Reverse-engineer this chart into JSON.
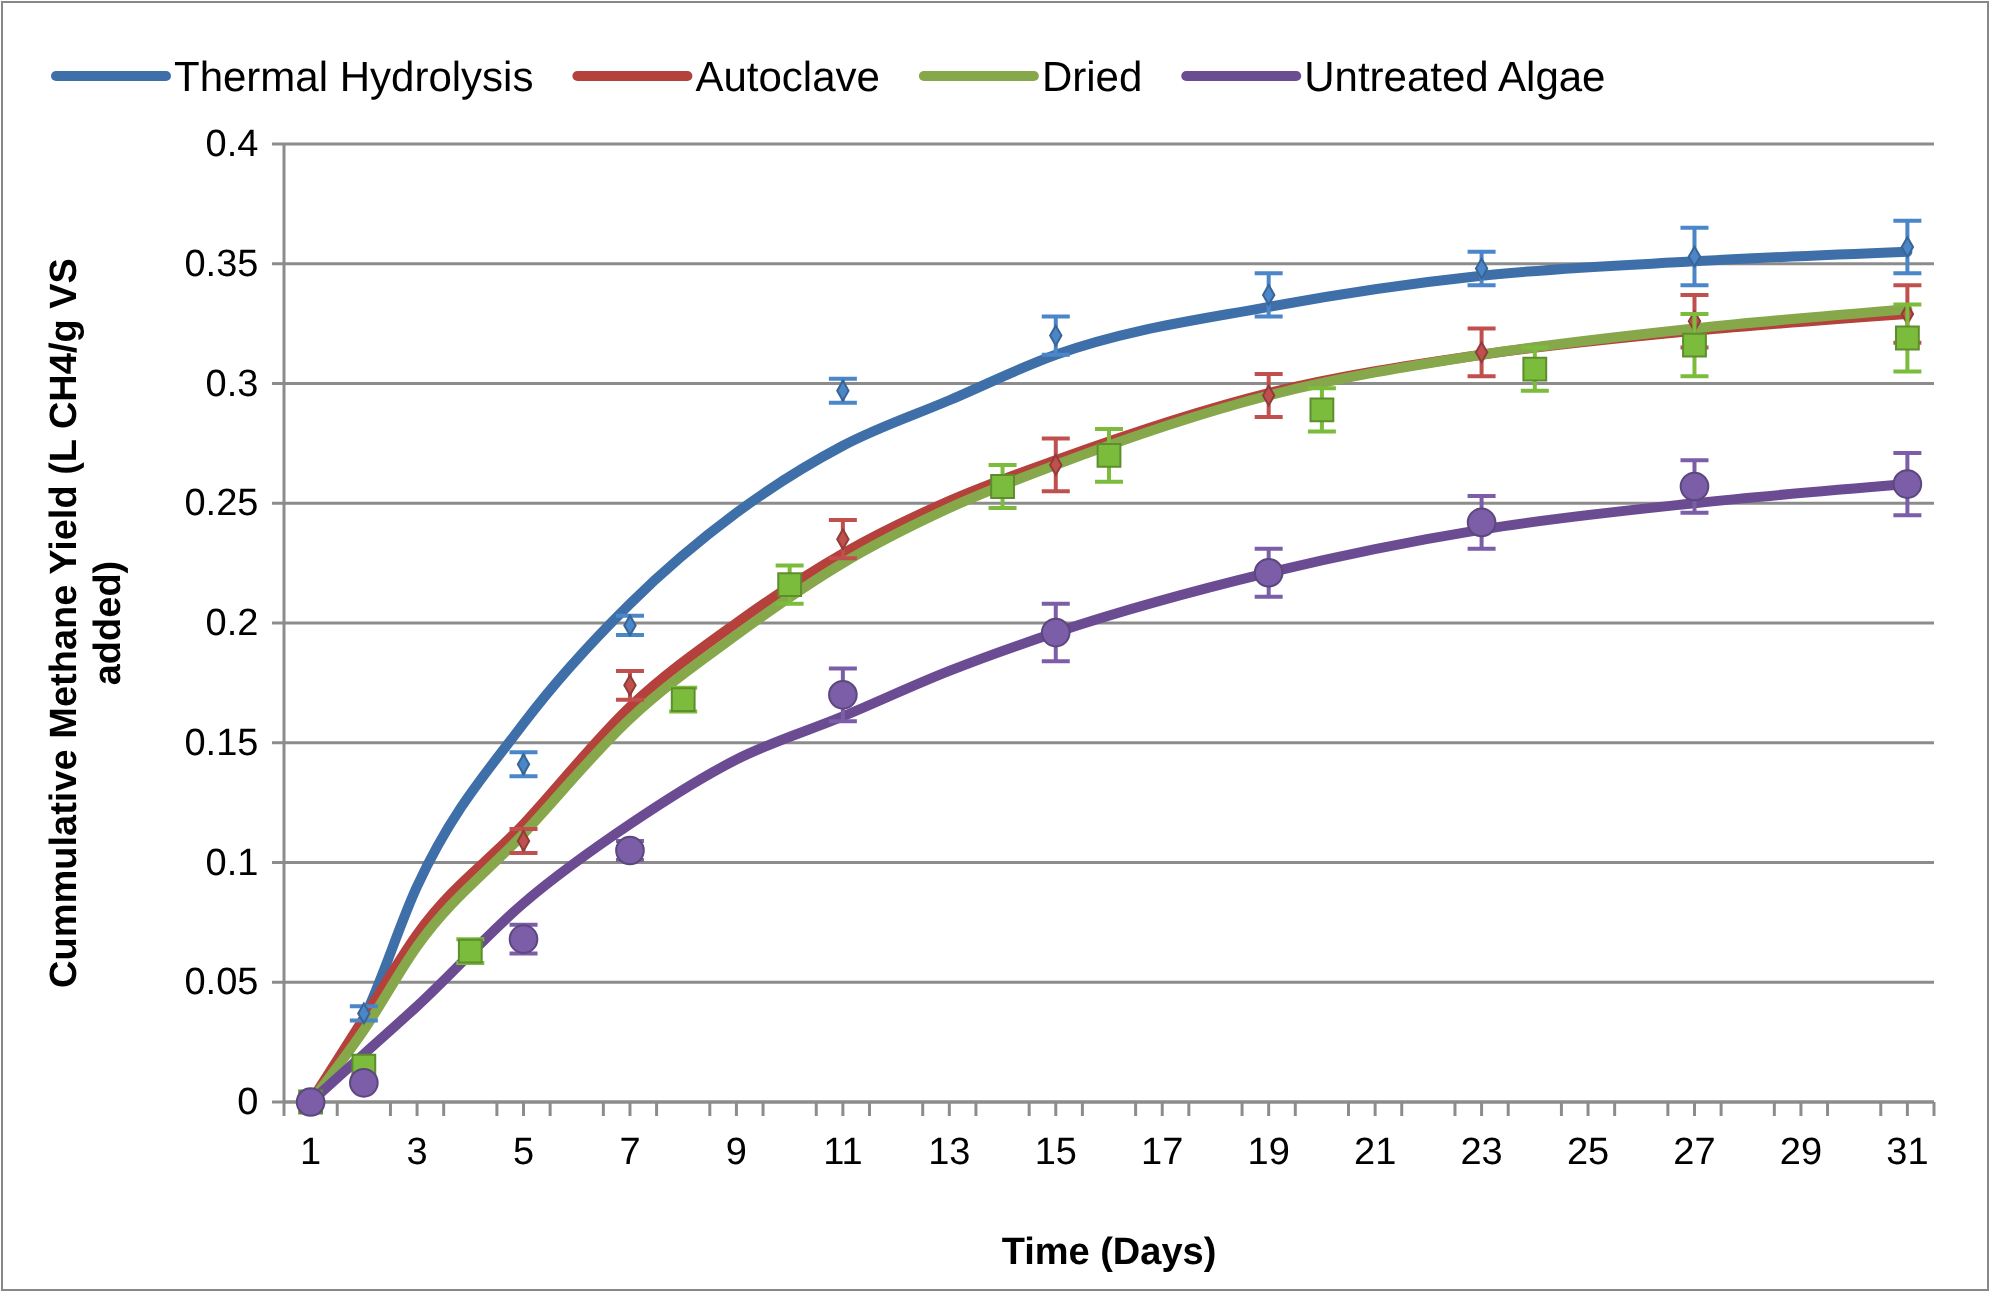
{
  "chart_data": {
    "type": "line",
    "xlabel": "Time (Days)",
    "ylabel": "Cummulative Methane Yield (L CH4/g VS added)",
    "xlim": [
      0.5,
      31.5
    ],
    "xticks": [
      1,
      3,
      5,
      7,
      9,
      11,
      13,
      15,
      17,
      19,
      21,
      23,
      25,
      27,
      29,
      31,
      {
        "value": 0.5,
        "label": null
      },
      {
        "value": 1.5,
        "label": null
      },
      {
        "value": 2.5,
        "label": null
      },
      {
        "value": 3.5,
        "label": null
      },
      {
        "value": 4.5,
        "label": null
      },
      {
        "value": 5.5,
        "label": null
      },
      {
        "value": 6.5,
        "label": null
      },
      {
        "value": 7.5,
        "label": null
      },
      {
        "value": 8.5,
        "label": null
      },
      {
        "value": 9.5,
        "label": null
      },
      {
        "value": 10.5,
        "label": null
      },
      {
        "value": 11.5,
        "label": null
      },
      {
        "value": 12.5,
        "label": null
      },
      {
        "value": 13.5,
        "label": null
      },
      {
        "value": 14.5,
        "label": null
      },
      {
        "value": 15.5,
        "label": null
      },
      {
        "value": 16.5,
        "label": null
      },
      {
        "value": 17.5,
        "label": null
      },
      {
        "value": 18.5,
        "label": null
      },
      {
        "value": 19.5,
        "label": null
      },
      {
        "value": 20.5,
        "label": null
      },
      {
        "value": 21.5,
        "label": null
      },
      {
        "value": 22.5,
        "label": null
      },
      {
        "value": 23.5,
        "label": null
      },
      {
        "value": 24.5,
        "label": null
      },
      {
        "value": 25.5,
        "label": null
      },
      {
        "value": 26.5,
        "label": null
      },
      {
        "value": 27.5,
        "label": null
      },
      {
        "value": 28.5,
        "label": null
      },
      {
        "value": 29.5,
        "label": null
      },
      {
        "value": 30.5,
        "label": null
      },
      {
        "value": 31.5,
        "label": null
      }
    ],
    "ylim": [
      0,
      0.4
    ],
    "yticks": [
      0,
      0.05,
      0.1,
      0.15,
      0.2,
      0.25,
      0.3,
      0.35,
      0.4
    ],
    "grid": "y",
    "legend": "top",
    "series": [
      {
        "type": "scatter",
        "color": "#4a86c8",
        "marker": "diamond",
        "x": [
          2,
          5,
          7,
          11,
          15,
          19,
          23,
          27,
          31
        ],
        "values": [
          0.037,
          0.141,
          0.199,
          0.297,
          0.32,
          0.337,
          0.348,
          0.353,
          0.357
        ],
        "errors": [
          0.003,
          0.005,
          0.004,
          0.005,
          0.008,
          0.009,
          0.007,
          0.012,
          0.011
        ]
      },
      {
        "type": "scatter",
        "color": "#c0504d",
        "marker": "diamond",
        "x": [
          5,
          7,
          11,
          15,
          19,
          23,
          27,
          31
        ],
        "values": [
          0.109,
          0.174,
          0.235,
          0.266,
          0.295,
          0.313,
          0.326,
          0.329
        ],
        "errors": [
          0.005,
          0.006,
          0.008,
          0.011,
          0.009,
          0.01,
          0.011,
          0.012
        ]
      },
      {
        "type": "scatter",
        "color": "#7cbc3c",
        "marker": "square",
        "x": [
          1,
          2,
          4,
          8,
          10,
          14,
          16,
          20,
          24,
          27,
          31
        ],
        "values": [
          0,
          0.015,
          0.063,
          0.168,
          0.216,
          0.257,
          0.27,
          0.289,
          0.306,
          0.316,
          0.319
        ],
        "errors": [
          null,
          null,
          0.005,
          0.005,
          0.008,
          0.009,
          0.011,
          0.009,
          0.009,
          0.013,
          0.014
        ]
      },
      {
        "type": "scatter",
        "color": "#7b5ea7",
        "marker": "circle",
        "x": [
          1,
          2,
          5,
          7,
          11,
          15,
          19,
          23,
          27,
          31
        ],
        "values": [
          0,
          0.008,
          0.068,
          0.105,
          0.17,
          0.196,
          0.221,
          0.242,
          0.257,
          0.258
        ],
        "errors": [
          null,
          null,
          0.006,
          0.004,
          0.011,
          0.012,
          0.01,
          0.011,
          0.011,
          0.013
        ]
      },
      {
        "name": "Thermal Hydrolysis",
        "color": "#3e6fa8",
        "x": [
          1,
          2,
          3,
          5,
          7,
          9,
          11,
          13,
          15,
          19,
          23,
          27,
          31
        ],
        "values": [
          0,
          0.035,
          0.09,
          0.158,
          0.208,
          0.246,
          0.274,
          0.293,
          0.312,
          0.332,
          0.345,
          0.351,
          0.355
        ]
      },
      {
        "name": "Autoclave",
        "color": "#b5413d",
        "x": [
          1,
          2,
          3,
          5,
          7,
          9,
          11,
          13,
          15,
          19,
          23,
          27,
          31
        ],
        "values": [
          0,
          0.035,
          0.07,
          0.116,
          0.165,
          0.2,
          0.229,
          0.251,
          0.268,
          0.296,
          0.312,
          0.322,
          0.329
        ]
      },
      {
        "name": "Dried",
        "color": "#86a84a",
        "x": [
          1,
          2,
          3,
          5,
          7,
          9,
          11,
          13,
          15,
          19,
          23,
          27,
          31
        ],
        "values": [
          0,
          0.03,
          0.065,
          0.112,
          0.16,
          0.195,
          0.225,
          0.248,
          0.266,
          0.295,
          0.312,
          0.323,
          0.331
        ]
      },
      {
        "name": "Untreated Algae",
        "color": "#6b4c93",
        "x": [
          1,
          2,
          3,
          5,
          7,
          9,
          11,
          13,
          15,
          19,
          23,
          27,
          31
        ],
        "values": [
          0,
          0.02,
          0.04,
          0.083,
          0.116,
          0.143,
          0.161,
          0.18,
          0.196,
          0.221,
          0.239,
          0.25,
          0.258
        ]
      }
    ]
  }
}
